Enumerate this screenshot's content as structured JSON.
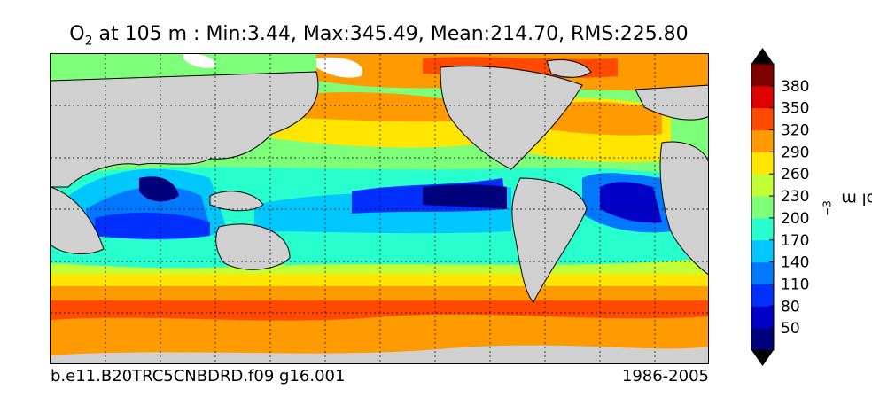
{
  "title": {
    "species_main": "O",
    "species_sub": "2",
    "rest": " at 105 m : Min:3.44, Max:345.49, Mean:214.70, RMS:225.80"
  },
  "footer": {
    "case_name": "b.e11.B20TRC5CNBDRD.f09 g16.001",
    "years": "1986-2005"
  },
  "colorbar": {
    "unit_main": "mmol m",
    "unit_exp": "−3",
    "ticks": [
      "50",
      "80",
      "110",
      "140",
      "170",
      "200",
      "230",
      "260",
      "290",
      "320",
      "350",
      "380"
    ],
    "colors": [
      "#00007f",
      "#0000c8",
      "#0030ff",
      "#0078ff",
      "#00c8ff",
      "#28ffcf",
      "#7dff7a",
      "#c2ff35",
      "#ffe600",
      "#ff9a00",
      "#ff4a00",
      "#e00000",
      "#7f0000"
    ],
    "under_color": "#000000",
    "over_color": "#000000"
  },
  "map": {
    "land_color": "#d0d0d0",
    "sea_ice_color": "#ffffff",
    "gridlines": "dashed"
  }
}
